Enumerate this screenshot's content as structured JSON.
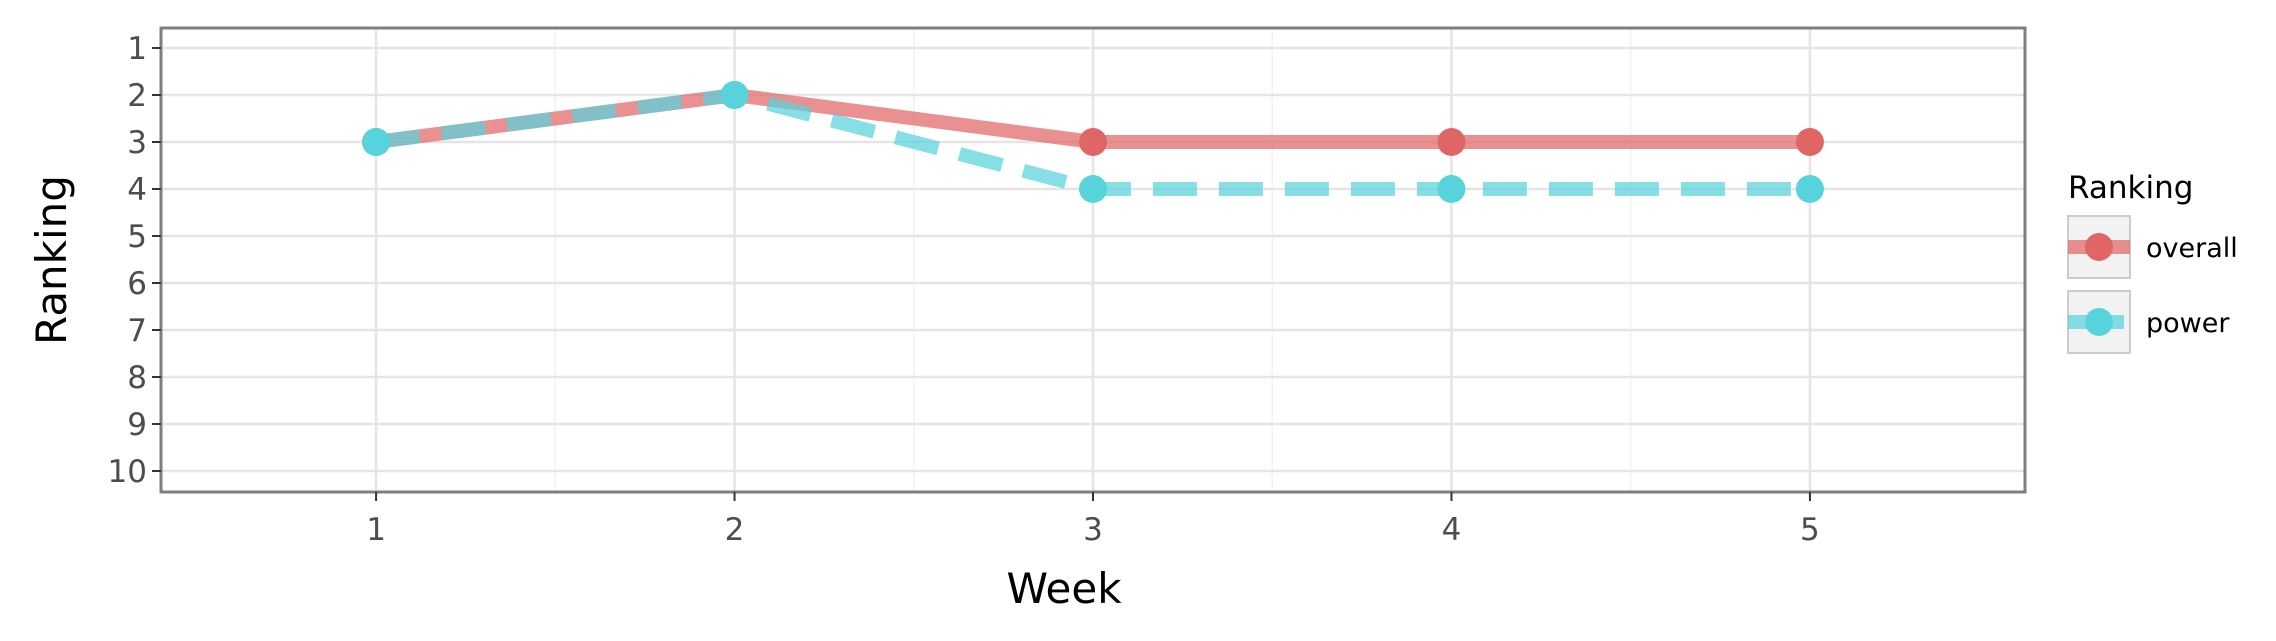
{
  "chart_data": {
    "type": "line",
    "title": "",
    "xlabel": "Week",
    "ylabel": "Ranking",
    "x": [
      1,
      2,
      3,
      4,
      5
    ],
    "x_ticks": [
      1,
      2,
      3,
      4,
      5
    ],
    "y_ticks": [
      1,
      2,
      3,
      4,
      5,
      6,
      7,
      8,
      9,
      10
    ],
    "xlim": [
      0.4,
      5.6
    ],
    "ylim": [
      1,
      10
    ],
    "y_reversed": true,
    "grid": true,
    "legend_title": "Ranking",
    "legend_position": "right",
    "series": [
      {
        "name": "overall",
        "values": [
          3,
          2,
          3,
          3,
          3
        ],
        "color": "#e06666",
        "line_style": "solid"
      },
      {
        "name": "power",
        "values": [
          3,
          2,
          4,
          4,
          4
        ],
        "color": "#57d3db",
        "line_style": "dashed"
      }
    ]
  }
}
